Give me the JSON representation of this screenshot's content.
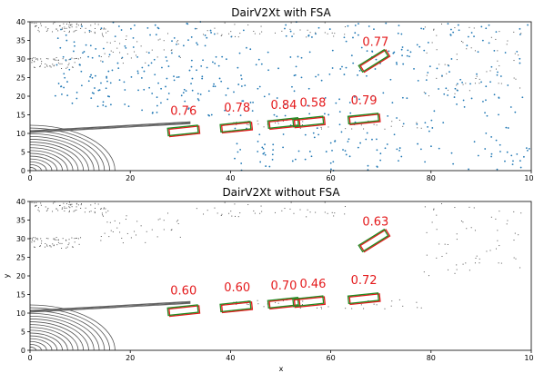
{
  "colors": {
    "lidar": "#555555",
    "extra_points": "#1f77b4",
    "gt_box": "#228b22",
    "pred_box": "#e41a1c",
    "score_text": "#e41a1c"
  },
  "chart_data": [
    {
      "type": "scatter",
      "title": "DairV2Xt with FSA",
      "xlabel": "",
      "ylabel": "",
      "xlim": [
        0,
        100
      ],
      "ylim": [
        0,
        40
      ],
      "xticks": [
        0,
        20,
        40,
        60,
        80,
        100
      ],
      "yticks": [
        0,
        5,
        10,
        15,
        20,
        25,
        30,
        35,
        40
      ],
      "boxes": [
        {
          "score": "0.76",
          "x": 30.5,
          "y": 10.8,
          "label_x": 28.0,
          "label_y": 15.0
        },
        {
          "score": "0.78",
          "x": 41.0,
          "y": 11.8,
          "label_x": 38.7,
          "label_y": 15.8
        },
        {
          "score": "0.84",
          "x": 50.5,
          "y": 12.8,
          "label_x": 48.0,
          "label_y": 16.6
        },
        {
          "score": "0.58",
          "x": 55.5,
          "y": 13.2,
          "label_x": 53.8,
          "label_y": 17.2
        },
        {
          "score": "0.79",
          "x": 66.5,
          "y": 14.0,
          "label_x": 64.0,
          "label_y": 17.8
        },
        {
          "score": "0.77",
          "x": 68.5,
          "y": 29.5,
          "label_x": 66.3,
          "label_y": 33.5
        }
      ]
    },
    {
      "type": "scatter",
      "title": "DairV2Xt without FSA",
      "xlabel": "x",
      "ylabel": "y",
      "xlim": [
        0,
        100
      ],
      "ylim": [
        0,
        40
      ],
      "xticks": [
        0,
        20,
        40,
        60,
        80,
        100
      ],
      "yticks": [
        0,
        5,
        10,
        15,
        20,
        25,
        30,
        35,
        40
      ],
      "boxes": [
        {
          "score": "0.60",
          "x": 30.5,
          "y": 10.8,
          "label_x": 28.0,
          "label_y": 15.0
        },
        {
          "score": "0.60",
          "x": 41.0,
          "y": 11.8,
          "label_x": 38.7,
          "label_y": 15.8
        },
        {
          "score": "0.70",
          "x": 50.5,
          "y": 12.8,
          "label_x": 48.0,
          "label_y": 16.3
        },
        {
          "score": "0.46",
          "x": 55.5,
          "y": 13.2,
          "label_x": 53.8,
          "label_y": 16.8
        },
        {
          "score": "0.72",
          "x": 66.5,
          "y": 14.0,
          "label_x": 64.0,
          "label_y": 17.8
        },
        {
          "score": "0.63",
          "x": 68.5,
          "y": 29.5,
          "label_x": 66.3,
          "label_y": 33.5
        }
      ]
    }
  ]
}
